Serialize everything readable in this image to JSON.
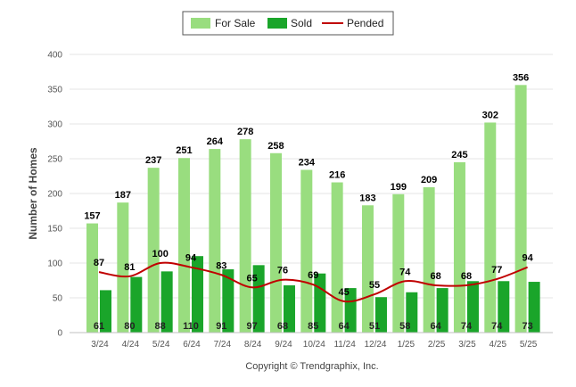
{
  "chart_data": {
    "type": "bar",
    "title": "",
    "xlabel": "",
    "ylabel": "Number of Homes",
    "ylim": [
      0,
      400
    ],
    "yticks": [
      0,
      50,
      100,
      150,
      200,
      250,
      300,
      350,
      400
    ],
    "grid": true,
    "legend_position": "top-center",
    "categories": [
      "3/24",
      "4/24",
      "5/24",
      "6/24",
      "7/24",
      "8/24",
      "9/24",
      "10/24",
      "11/24",
      "12/24",
      "1/25",
      "2/25",
      "3/25",
      "4/25",
      "5/25"
    ],
    "series": [
      {
        "name": "For Sale",
        "type": "bar",
        "color": "#99dd7f",
        "values": [
          157,
          187,
          237,
          251,
          264,
          278,
          258,
          234,
          216,
          183,
          199,
          209,
          245,
          302,
          356
        ]
      },
      {
        "name": "Sold",
        "type": "bar",
        "color": "#1aa52a",
        "values": [
          61,
          80,
          88,
          110,
          91,
          97,
          68,
          85,
          64,
          51,
          58,
          64,
          74,
          74,
          73
        ]
      },
      {
        "name": "Pended",
        "type": "line",
        "color": "#c00000",
        "values": [
          87,
          81,
          100,
          94,
          83,
          65,
          76,
          69,
          45,
          55,
          74,
          68,
          68,
          77,
          94
        ]
      }
    ]
  },
  "footer": {
    "copyright": "Copyright © Trendgraphix, Inc."
  }
}
